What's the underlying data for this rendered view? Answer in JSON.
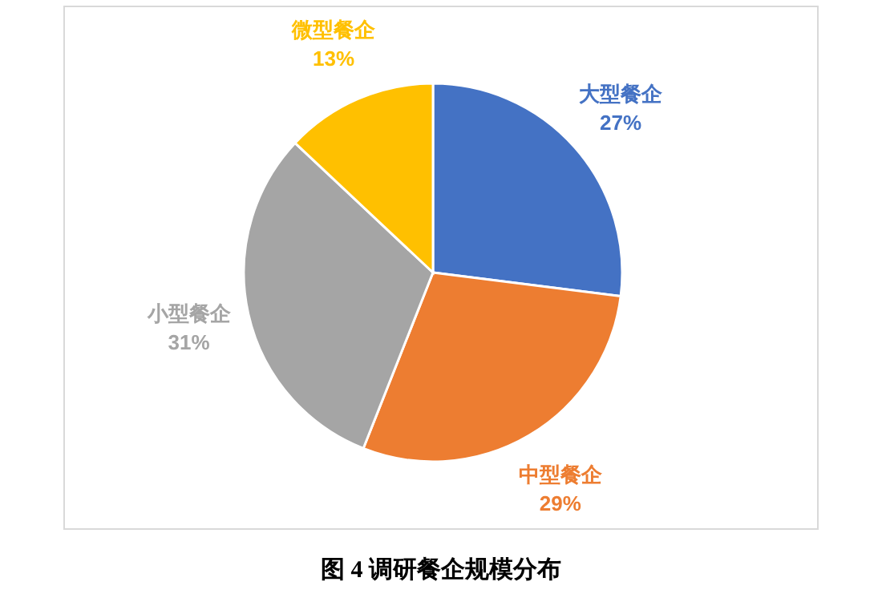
{
  "chart_data": {
    "type": "pie",
    "categories": [
      "大型餐企",
      "中型餐企",
      "小型餐企",
      "微型餐企"
    ],
    "values": [
      27,
      29,
      31,
      13
    ],
    "value_labels": [
      "27%",
      "29%",
      "31%",
      "13%"
    ],
    "colors": [
      "#4472c4",
      "#ed7d31",
      "#a5a5a5",
      "#ffc000"
    ],
    "annotations": [
      "图 4 调研餐企规模分布"
    ]
  }
}
